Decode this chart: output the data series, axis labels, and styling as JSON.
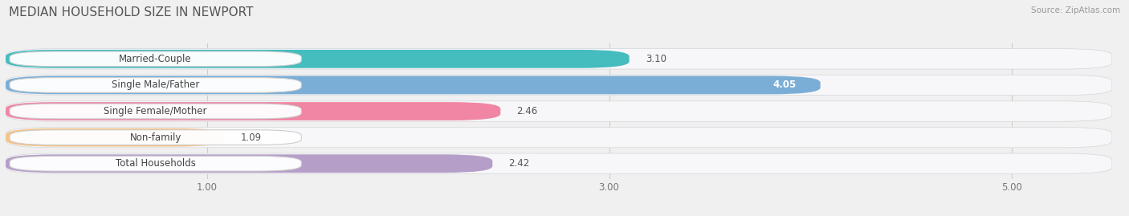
{
  "title": "MEDIAN HOUSEHOLD SIZE IN NEWPORT",
  "source": "Source: ZipAtlas.com",
  "categories": [
    "Married-Couple",
    "Single Male/Father",
    "Single Female/Mother",
    "Non-family",
    "Total Households"
  ],
  "values": [
    3.1,
    4.05,
    2.46,
    1.09,
    2.42
  ],
  "bar_colors": [
    "#45bcbe",
    "#7aaed6",
    "#f086a4",
    "#f5c48a",
    "#b59ec8"
  ],
  "xlim_left": 0,
  "xlim_right": 5.5,
  "data_max": 5.0,
  "xticks": [
    1.0,
    3.0,
    5.0
  ],
  "xtick_labels": [
    "1.00",
    "3.00",
    "5.00"
  ],
  "background_color": "#f0f0f0",
  "bar_bg_color": "#e4e4e8",
  "row_bg_color": "#f7f7f9",
  "value_labels": [
    "3.10",
    "4.05",
    "2.46",
    "1.09",
    "2.42"
  ],
  "value_inside": [
    false,
    true,
    false,
    false,
    false
  ],
  "title_fontsize": 11,
  "label_fontsize": 8.5,
  "value_fontsize": 8.5
}
